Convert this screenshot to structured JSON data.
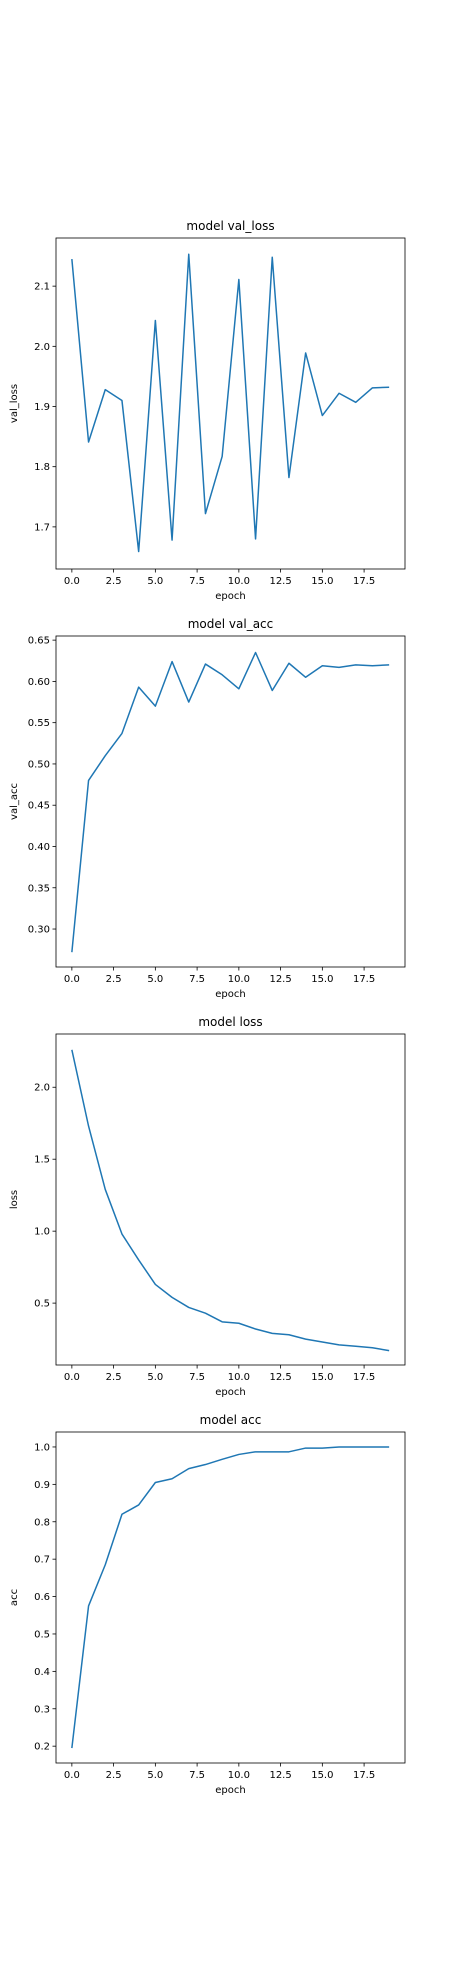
{
  "line_color": "#1f77b4",
  "chart_data": [
    {
      "type": "line",
      "title": "model val_loss",
      "xlabel": "epoch",
      "ylabel": "val_loss",
      "xlim": [
        -0.95,
        19.95
      ],
      "ylim": [
        1.63,
        2.18
      ],
      "xticks": [
        0.0,
        2.5,
        5.0,
        7.5,
        10.0,
        12.5,
        15.0,
        17.5
      ],
      "xtick_labels": [
        "0.0",
        "2.5",
        "5.0",
        "7.5",
        "10.0",
        "12.5",
        "15.0",
        "17.5"
      ],
      "yticks": [
        1.7,
        1.8,
        1.9,
        2.0,
        2.1
      ],
      "ytick_labels": [
        "1.7",
        "1.8",
        "1.9",
        "2.0",
        "2.1"
      ],
      "grid": false,
      "x": [
        0,
        1,
        2,
        3,
        4,
        5,
        6,
        7,
        8,
        9,
        10,
        11,
        12,
        13,
        14,
        15,
        16,
        17,
        18,
        19
      ],
      "values": [
        2.145,
        1.841,
        1.928,
        1.91,
        1.659,
        2.043,
        1.678,
        2.153,
        1.722,
        1.817,
        2.111,
        1.68,
        2.148,
        1.782,
        1.989,
        1.885,
        1.922,
        1.907,
        1.931,
        1.932
      ]
    },
    {
      "type": "line",
      "title": "model val_acc",
      "xlabel": "epoch",
      "ylabel": "val_acc",
      "xlim": [
        -0.95,
        19.95
      ],
      "ylim": [
        0.254,
        0.655
      ],
      "xticks": [
        0.0,
        2.5,
        5.0,
        7.5,
        10.0,
        12.5,
        15.0,
        17.5
      ],
      "xtick_labels": [
        "0.0",
        "2.5",
        "5.0",
        "7.5",
        "10.0",
        "12.5",
        "15.0",
        "17.5"
      ],
      "yticks": [
        0.3,
        0.35,
        0.4,
        0.45,
        0.5,
        0.55,
        0.6,
        0.65
      ],
      "ytick_labels": [
        "0.30",
        "0.35",
        "0.40",
        "0.45",
        "0.50",
        "0.55",
        "0.60",
        "0.65"
      ],
      "grid": false,
      "x": [
        0,
        1,
        2,
        3,
        4,
        5,
        6,
        7,
        8,
        9,
        10,
        11,
        12,
        13,
        14,
        15,
        16,
        17,
        18,
        19
      ],
      "values": [
        0.272,
        0.48,
        0.51,
        0.537,
        0.593,
        0.57,
        0.624,
        0.575,
        0.621,
        0.608,
        0.591,
        0.635,
        0.589,
        0.622,
        0.605,
        0.619,
        0.617,
        0.62,
        0.619,
        0.62
      ]
    },
    {
      "type": "line",
      "title": "model loss",
      "xlabel": "epoch",
      "ylabel": "loss",
      "xlim": [
        -0.95,
        19.95
      ],
      "ylim": [
        0.07,
        2.37
      ],
      "xticks": [
        0.0,
        2.5,
        5.0,
        7.5,
        10.0,
        12.5,
        15.0,
        17.5
      ],
      "xtick_labels": [
        "0.0",
        "2.5",
        "5.0",
        "7.5",
        "10.0",
        "12.5",
        "15.0",
        "17.5"
      ],
      "yticks": [
        0.5,
        1.0,
        1.5,
        2.0
      ],
      "ytick_labels": [
        "0.5",
        "1.0",
        "1.5",
        "2.0"
      ],
      "grid": false,
      "x": [
        0,
        1,
        2,
        3,
        4,
        5,
        6,
        7,
        8,
        9,
        10,
        11,
        12,
        13,
        14,
        15,
        16,
        17,
        18,
        19
      ],
      "values": [
        2.26,
        1.73,
        1.29,
        0.98,
        0.8,
        0.63,
        0.54,
        0.47,
        0.43,
        0.37,
        0.36,
        0.32,
        0.29,
        0.28,
        0.25,
        0.23,
        0.21,
        0.2,
        0.19,
        0.17
      ]
    },
    {
      "type": "line",
      "title": "model acc",
      "xlabel": "epoch",
      "ylabel": "acc",
      "xlim": [
        -0.95,
        19.95
      ],
      "ylim": [
        0.155,
        1.04
      ],
      "xticks": [
        0.0,
        2.5,
        5.0,
        7.5,
        10.0,
        12.5,
        15.0,
        17.5
      ],
      "xtick_labels": [
        "0.0",
        "2.5",
        "5.0",
        "7.5",
        "10.0",
        "12.5",
        "15.0",
        "17.5"
      ],
      "yticks": [
        0.2,
        0.3,
        0.4,
        0.5,
        0.6,
        0.7,
        0.8,
        0.9,
        1.0
      ],
      "ytick_labels": [
        "0.2",
        "0.3",
        "0.4",
        "0.5",
        "0.6",
        "0.7",
        "0.8",
        "0.9",
        "1.0"
      ],
      "grid": false,
      "x": [
        0,
        1,
        2,
        3,
        4,
        5,
        6,
        7,
        8,
        9,
        10,
        11,
        12,
        13,
        14,
        15,
        16,
        17,
        18,
        19
      ],
      "values": [
        0.195,
        0.575,
        0.685,
        0.82,
        0.845,
        0.905,
        0.915,
        0.942,
        0.953,
        0.967,
        0.98,
        0.987,
        0.987,
        0.987,
        0.997,
        0.997,
        1.0,
        1.0,
        1.0,
        1.0
      ]
    }
  ]
}
